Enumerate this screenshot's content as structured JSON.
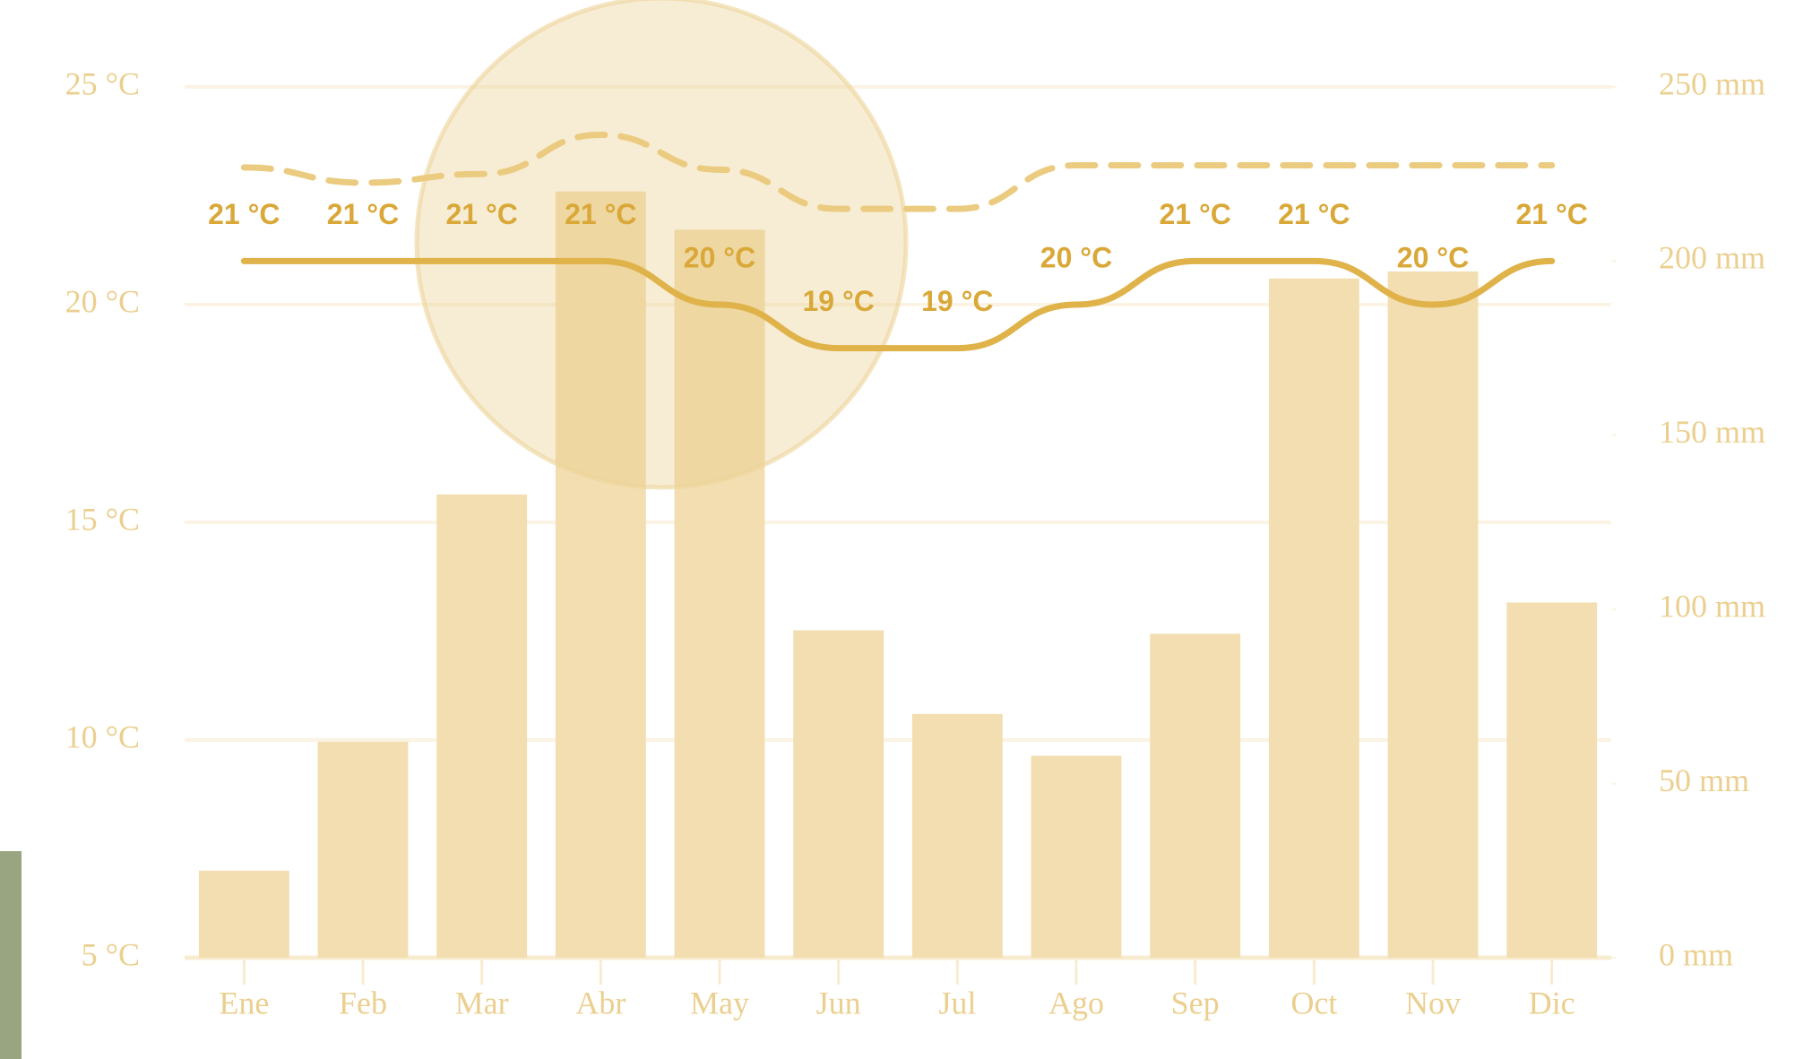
{
  "chart_data": {
    "type": "bar",
    "categories": [
      "Ene",
      "Feb",
      "Mar",
      "Abr",
      "May",
      "Jun",
      "Jul",
      "Ago",
      "Sep",
      "Oct",
      "Nov",
      "Dic"
    ],
    "ylim": [
      5,
      25
    ],
    "yticks": [
      {
        "value": 5,
        "label": "5 °C"
      },
      {
        "value": 10,
        "label": "10 °C"
      },
      {
        "value": 15,
        "label": "15 °C"
      },
      {
        "value": 20,
        "label": "20 °C"
      },
      {
        "value": 25,
        "label": "25 °C"
      }
    ],
    "y2lim": [
      0,
      250
    ],
    "y2ticks": [
      {
        "value": 0,
        "label": "0 mm"
      },
      {
        "value": 50,
        "label": "50 mm"
      },
      {
        "value": 100,
        "label": "100 mm"
      },
      {
        "value": 150,
        "label": "150 mm"
      },
      {
        "value": 200,
        "label": "200 mm"
      },
      {
        "value": 250,
        "label": "250 mm"
      }
    ],
    "grid": true,
    "series": [
      {
        "type": "bar",
        "axis": "y2",
        "color": "#f2deb0",
        "values": [
          25,
          62,
          133,
          220,
          209,
          94,
          70,
          58,
          93,
          195,
          197,
          102
        ]
      },
      {
        "type": "line",
        "color": "#e0b24a",
        "values": [
          21,
          21,
          21,
          21,
          20,
          19,
          19,
          20,
          21,
          21,
          20,
          21
        ],
        "value_labels": [
          "21 °C",
          "21 °C",
          "21 °C",
          "21 °C",
          "20 °C",
          "19 °C",
          "19 °C",
          "20 °C",
          "21 °C",
          "21 °C",
          "20 °C",
          "21 °C"
        ]
      },
      {
        "type": "line",
        "dashed": true,
        "color": "#ebcb80",
        "values": [
          23.15,
          22.8,
          23.0,
          23.9,
          23.1,
          22.2,
          22.2,
          23.2,
          23.2,
          23.2,
          23.2,
          23.2
        ]
      }
    ]
  }
}
